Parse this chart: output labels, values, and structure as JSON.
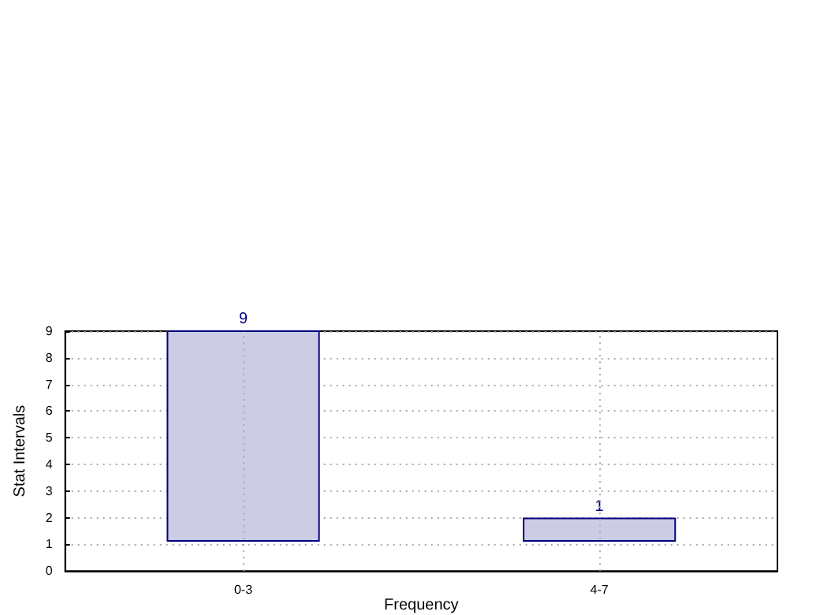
{
  "chart_data": {
    "type": "bar",
    "xlabel": "Frequency",
    "ylabel": "Stat Intervals",
    "categories": [
      "0-3",
      "4-7"
    ],
    "base": [
      1.1,
      1.1
    ],
    "values": [
      8,
      0.9
    ],
    "value_labels": [
      "9",
      "1"
    ],
    "color": "#cccce4",
    "ylim": [
      0,
      9
    ],
    "yticks": [
      0,
      1,
      2,
      3,
      4,
      5,
      6,
      7,
      8,
      9
    ],
    "grid": true
  }
}
